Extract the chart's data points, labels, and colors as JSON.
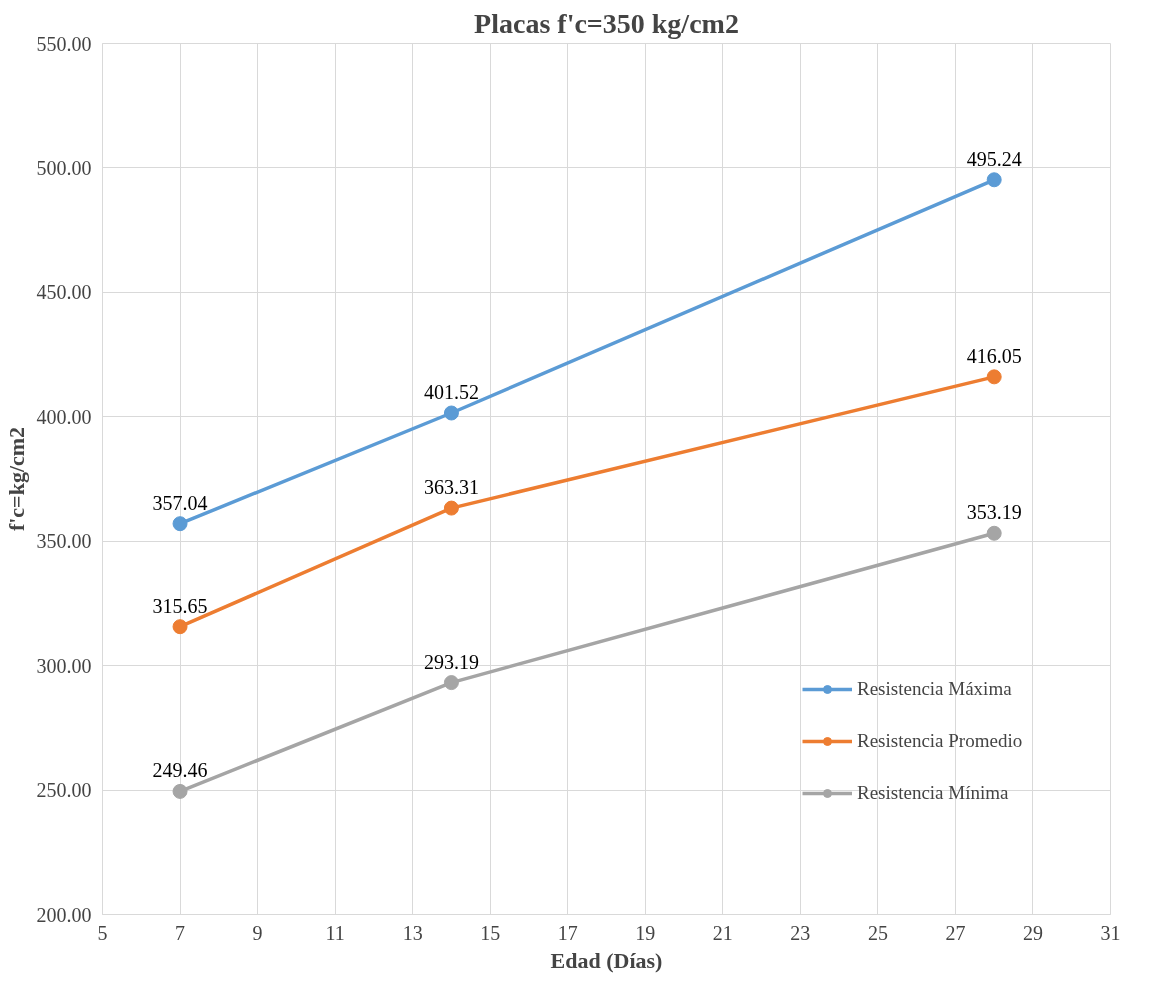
{
  "chart_data": {
    "type": "line",
    "title": "Placas f'c=350 kg/cm2",
    "xlabel": "Edad (Días)",
    "ylabel": "f'c=kg/cm2",
    "x": [
      7,
      14,
      28
    ],
    "series": [
      {
        "name": "Resistencia Máxima",
        "color": "#5b9bd5",
        "values": [
          357.04,
          401.52,
          495.24
        ]
      },
      {
        "name": "Resistencia Promedio",
        "color": "#ed7d31",
        "values": [
          315.65,
          363.31,
          416.05
        ]
      },
      {
        "name": "Resistencia Mínima",
        "color": "#a5a5a5",
        "values": [
          249.46,
          293.19,
          353.19
        ]
      }
    ],
    "xlim": [
      5,
      31
    ],
    "xticks": [
      5,
      7,
      9,
      11,
      13,
      15,
      17,
      19,
      21,
      23,
      25,
      27,
      29,
      31
    ],
    "ylim": [
      200,
      550
    ],
    "yticks": [
      {
        "value": 200,
        "label": "200.00"
      },
      {
        "value": 250,
        "label": "250.00"
      },
      {
        "value": 300,
        "label": "300.00"
      },
      {
        "value": 350,
        "label": "350.00"
      },
      {
        "value": 400,
        "label": "400.00"
      },
      {
        "value": 450,
        "label": "450.00"
      },
      {
        "value": 500,
        "label": "500.00"
      },
      {
        "value": 550,
        "label": "550.00"
      }
    ],
    "grid": true,
    "legend": "right",
    "marker": "circle",
    "line_style": "solid",
    "data_labels": true
  }
}
